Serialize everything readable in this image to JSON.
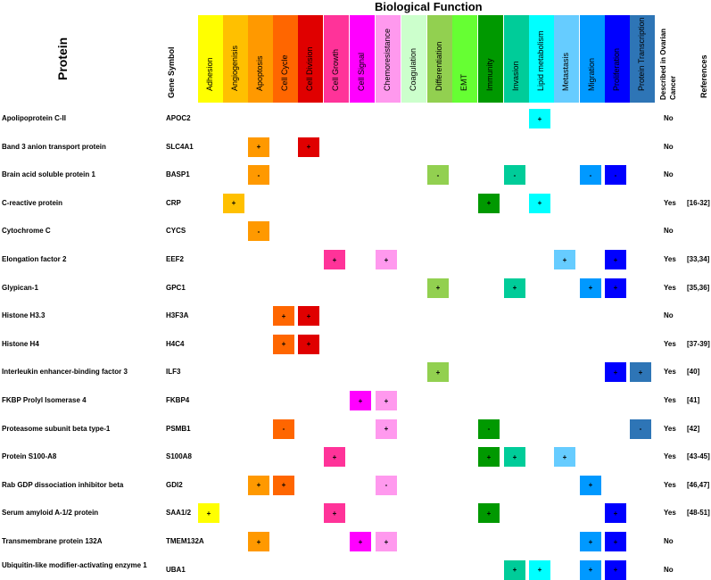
{
  "title": "Biological Function",
  "headers": {
    "protein": "Protein",
    "gene_symbol": "Gene Symbol",
    "described_line1": "Described in Ovarian",
    "described_line2": "Cancer",
    "references": "References"
  },
  "functions": [
    {
      "name": "Adhesion",
      "color": "#ffff00"
    },
    {
      "name": "Angiogenisis",
      "color": "#ffc000"
    },
    {
      "name": "Apoptosis",
      "color": "#ff9900"
    },
    {
      "name": "Cell Cycle",
      "color": "#ff6600"
    },
    {
      "name": "Cell Division",
      "color": "#e00000"
    },
    {
      "name": "Cell Growth",
      "color": "#ff3399"
    },
    {
      "name": "Cell Signal",
      "color": "#ff00ff"
    },
    {
      "name": "Chemoresistance",
      "color": "#ff99ee"
    },
    {
      "name": "Coagulation",
      "color": "#ccffcc"
    },
    {
      "name": "Differentiation",
      "color": "#92d050"
    },
    {
      "name": "EMT",
      "color": "#66ff33"
    },
    {
      "name": "Immunity",
      "color": "#009900"
    },
    {
      "name": "Invasion",
      "color": "#00cc99"
    },
    {
      "name": "Lipid metabolism",
      "color": "#00ffff"
    },
    {
      "name": "Metastasis",
      "color": "#66ccff"
    },
    {
      "name": "Migration",
      "color": "#0099ff"
    },
    {
      "name": "Proliferation",
      "color": "#0000ff"
    },
    {
      "name": "Protein Transcription",
      "color": "#2e75b6"
    }
  ],
  "rows": [
    {
      "protein": "Apolipoprotein C-II",
      "gene": "APOC2",
      "described": "No",
      "refs": "",
      "cells": [
        {
          "f": 13,
          "s": "+"
        }
      ]
    },
    {
      "protein": "Band 3 anion transport protein",
      "gene": "SLC4A1",
      "described": "No",
      "refs": "",
      "cells": [
        {
          "f": 2,
          "s": "+"
        },
        {
          "f": 4,
          "s": "+"
        }
      ]
    },
    {
      "protein": "Brain acid soluble protein 1",
      "gene": "BASP1",
      "described": "No",
      "refs": "",
      "cells": [
        {
          "f": 2,
          "s": "-"
        },
        {
          "f": 9,
          "s": "-"
        },
        {
          "f": 12,
          "s": "-"
        },
        {
          "f": 15,
          "s": "-"
        },
        {
          "f": 16,
          "s": "-"
        }
      ]
    },
    {
      "protein": "C-reactive protein",
      "gene": "CRP",
      "described": "Yes",
      "refs": "[16-32]",
      "cells": [
        {
          "f": 1,
          "s": "+"
        },
        {
          "f": 11,
          "s": "+"
        },
        {
          "f": 13,
          "s": "+"
        }
      ]
    },
    {
      "protein": "Cytochrome C",
      "gene": "CYCS",
      "described": "No",
      "refs": "",
      "cells": [
        {
          "f": 2,
          "s": "-"
        }
      ]
    },
    {
      "protein": "Elongation factor 2",
      "gene": "EEF2",
      "described": "Yes",
      "refs": "[33,34]",
      "cells": [
        {
          "f": 5,
          "s": "+"
        },
        {
          "f": 7,
          "s": "+"
        },
        {
          "f": 14,
          "s": "+"
        },
        {
          "f": 16,
          "s": "+"
        }
      ]
    },
    {
      "protein": "Glypican-1",
      "gene": "GPC1",
      "described": "Yes",
      "refs": "[35,36]",
      "cells": [
        {
          "f": 9,
          "s": "+"
        },
        {
          "f": 12,
          "s": "+"
        },
        {
          "f": 15,
          "s": "+"
        },
        {
          "f": 16,
          "s": "+"
        }
      ]
    },
    {
      "protein": "Histone H3.3",
      "gene": "H3F3A",
      "described": "No",
      "refs": "",
      "cells": [
        {
          "f": 3,
          "s": "+"
        },
        {
          "f": 4,
          "s": "+"
        }
      ]
    },
    {
      "protein": "Histone H4",
      "gene": "H4C4",
      "described": "Yes",
      "refs": "[37-39]",
      "cells": [
        {
          "f": 3,
          "s": "+"
        },
        {
          "f": 4,
          "s": "+"
        }
      ]
    },
    {
      "protein": "Interleukin enhancer-binding factor 3",
      "gene": "ILF3",
      "described": "Yes",
      "refs": "[40]",
      "cells": [
        {
          "f": 9,
          "s": "+"
        },
        {
          "f": 16,
          "s": "+"
        },
        {
          "f": 17,
          "s": "+"
        }
      ]
    },
    {
      "protein": "FKBP Prolyl Isomerase 4",
      "gene": "FKBP4",
      "described": "Yes",
      "refs": "[41]",
      "cells": [
        {
          "f": 6,
          "s": "+"
        },
        {
          "f": 7,
          "s": "+"
        }
      ]
    },
    {
      "protein": "Proteasome subunit beta type-1",
      "gene": "PSMB1",
      "described": "Yes",
      "refs": "[42]",
      "cells": [
        {
          "f": 3,
          "s": "-"
        },
        {
          "f": 7,
          "s": "+"
        },
        {
          "f": 11,
          "s": "-"
        },
        {
          "f": 17,
          "s": "-"
        }
      ]
    },
    {
      "protein": "Protein S100-A8",
      "gene": "S100A8",
      "described": "Yes",
      "refs": "[43-45]",
      "cells": [
        {
          "f": 5,
          "s": "+"
        },
        {
          "f": 11,
          "s": "+"
        },
        {
          "f": 12,
          "s": "+"
        },
        {
          "f": 14,
          "s": "+"
        }
      ]
    },
    {
      "protein": "Rab GDP dissociation inhibitor beta",
      "gene": "GDI2",
      "described": "Yes",
      "refs": "[46,47]",
      "cells": [
        {
          "f": 2,
          "s": "+"
        },
        {
          "f": 3,
          "s": "+"
        },
        {
          "f": 7,
          "s": "-"
        },
        {
          "f": 15,
          "s": "+"
        }
      ]
    },
    {
      "protein": "Serum amyloid A-1/2 protein",
      "gene": "SAA1/2",
      "described": "Yes",
      "refs": "[48-51]",
      "cells": [
        {
          "f": 0,
          "s": "+"
        },
        {
          "f": 5,
          "s": "+"
        },
        {
          "f": 11,
          "s": "+"
        },
        {
          "f": 16,
          "s": "+"
        }
      ]
    },
    {
      "protein": "Transmembrane protein 132A",
      "gene": "TMEM132A",
      "described": "No",
      "refs": "",
      "cells": [
        {
          "f": 2,
          "s": "+"
        },
        {
          "f": 6,
          "s": "+"
        },
        {
          "f": 7,
          "s": "+"
        },
        {
          "f": 15,
          "s": "+"
        },
        {
          "f": 16,
          "s": "+"
        }
      ]
    },
    {
      "protein": "Ubiquitin-like modifier-activating enzyme 1",
      "gene": "UBA1",
      "described": "No",
      "refs": "",
      "cells": [
        {
          "f": 12,
          "s": "+"
        },
        {
          "f": 13,
          "s": "+"
        },
        {
          "f": 15,
          "s": "+"
        },
        {
          "f": 16,
          "s": "+"
        }
      ]
    }
  ]
}
